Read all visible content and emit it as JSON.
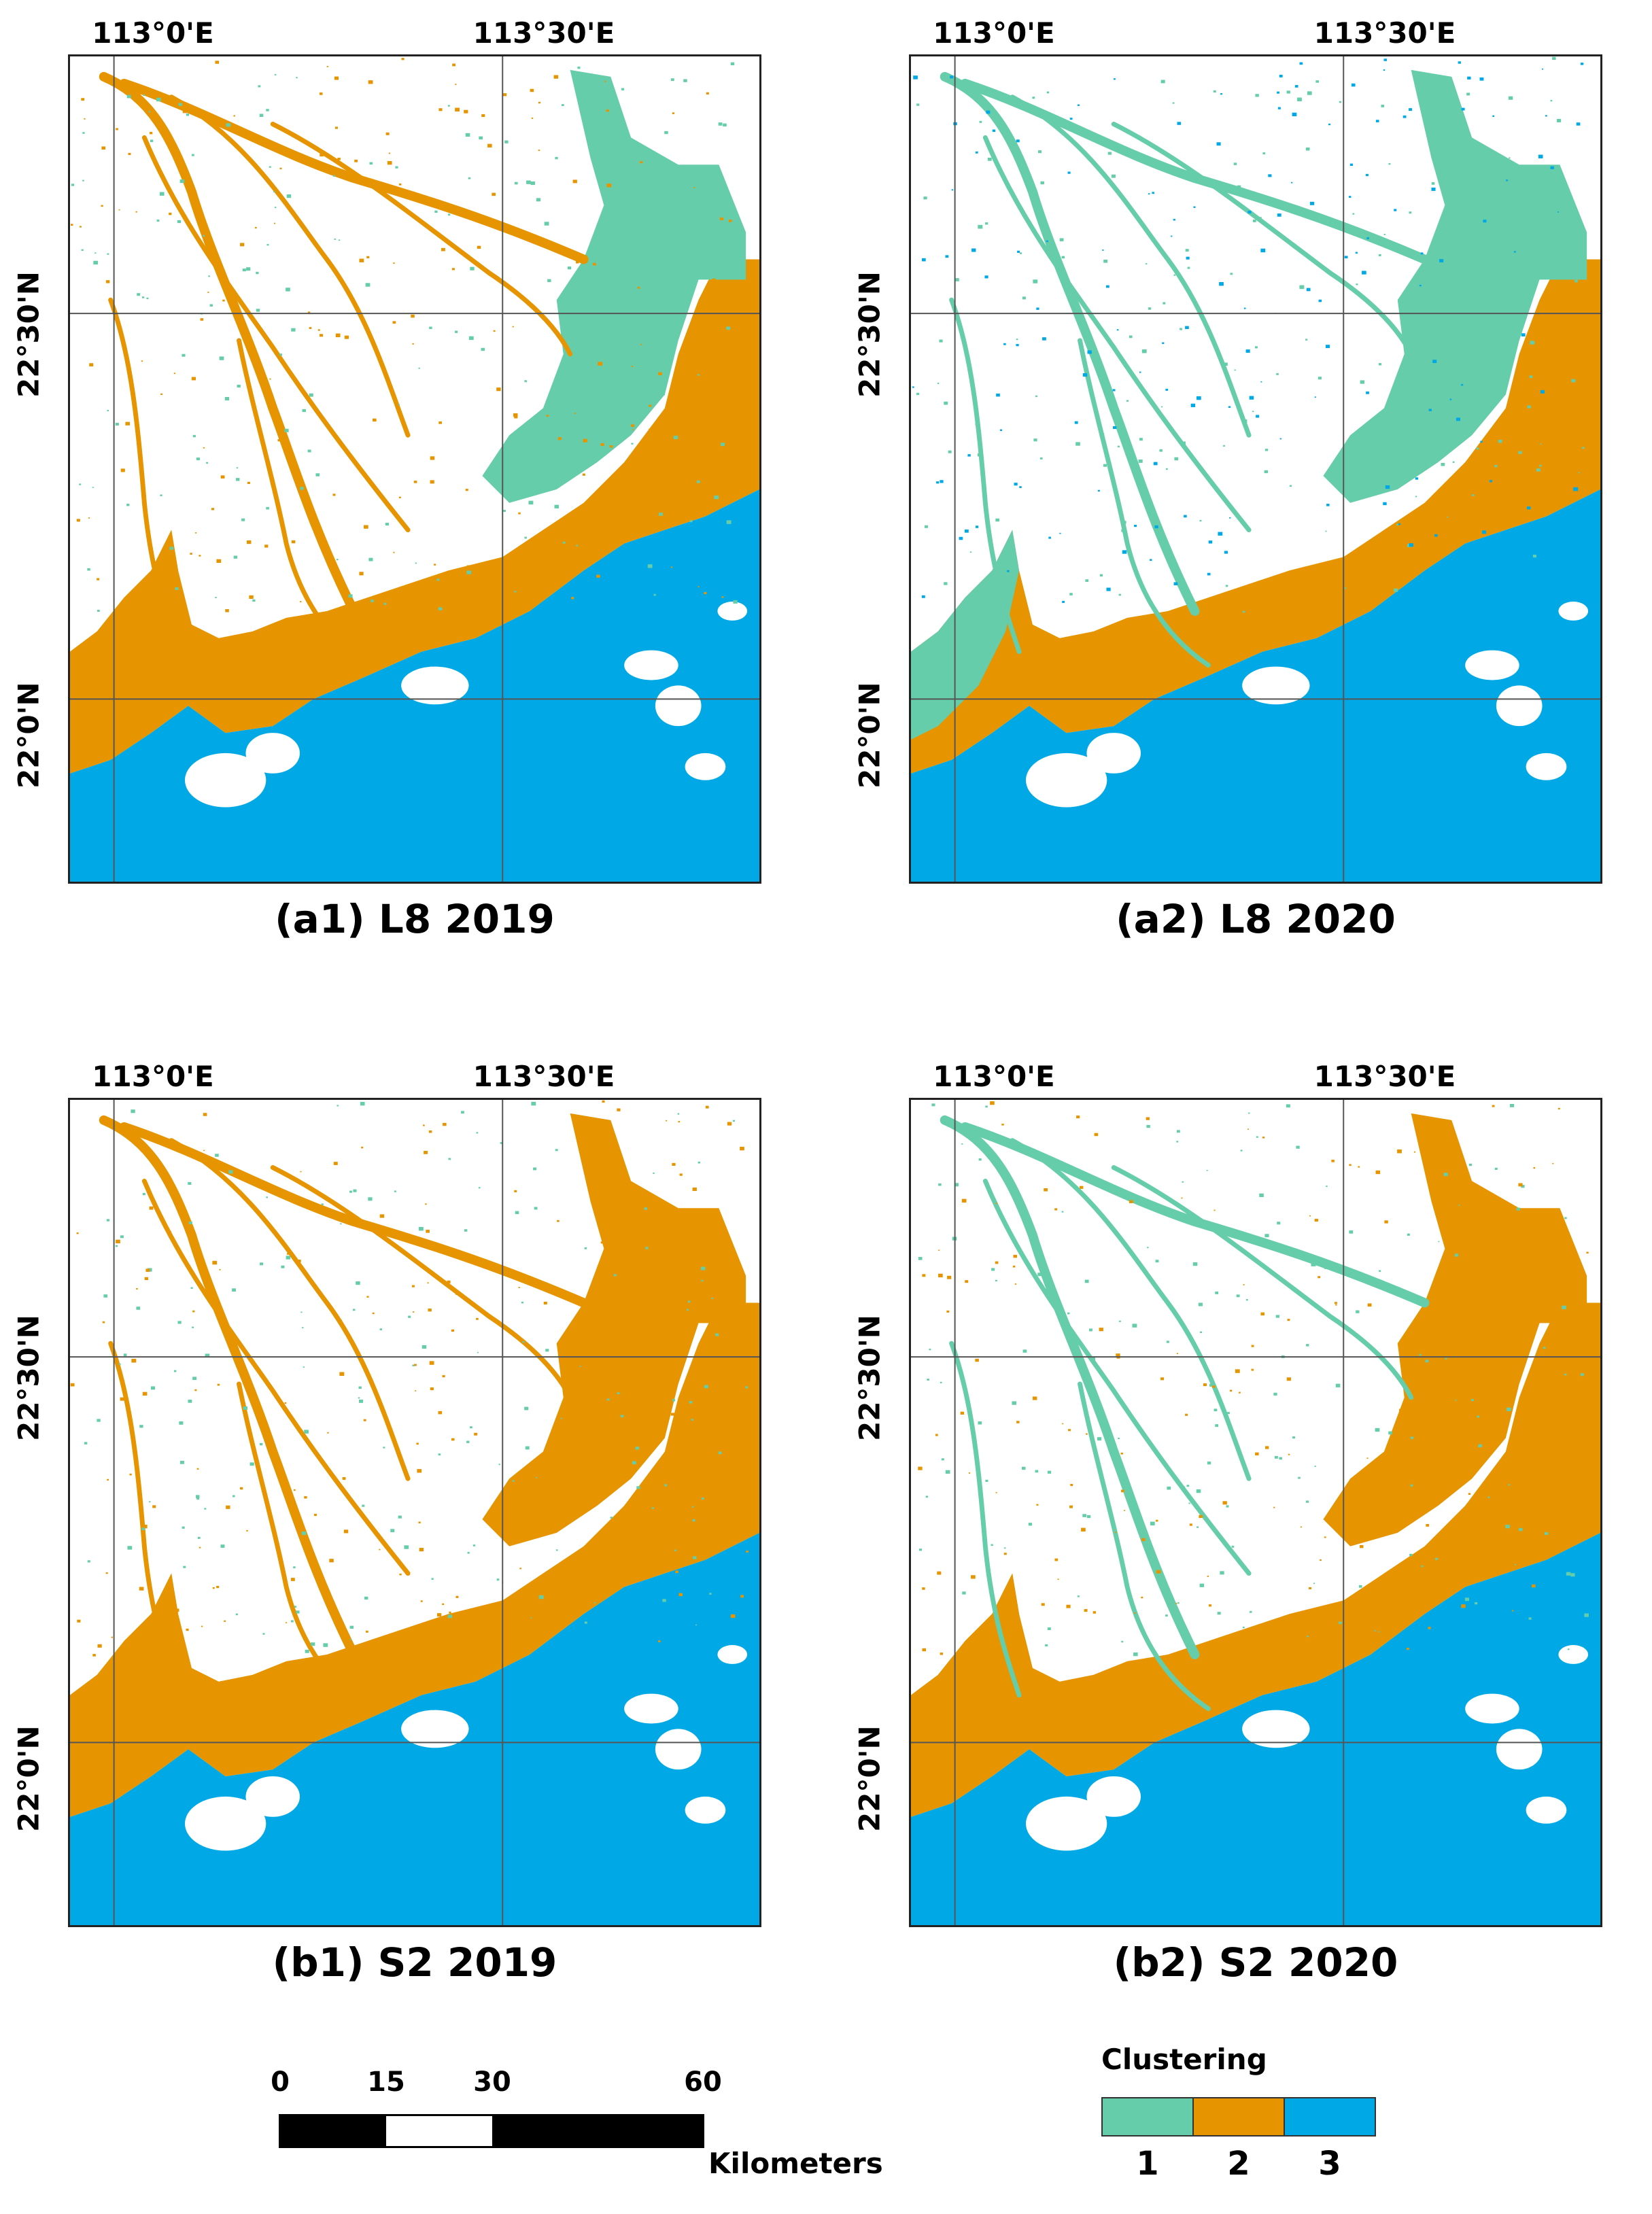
{
  "figure": {
    "panels": [
      {
        "id": "a1",
        "caption": "(a1) L8 2019",
        "variant": 0
      },
      {
        "id": "a2",
        "caption": "(a2) L8 2020",
        "variant": 1
      },
      {
        "id": "b1",
        "caption": "(b1) S2 2019",
        "variant": 2
      },
      {
        "id": "b2",
        "caption": "(b2) S2 2020",
        "variant": 3
      }
    ],
    "lon_labels": [
      "113°0'E",
      "113°30'E"
    ],
    "lat_labels": [
      "22°30'N",
      "22°0'N"
    ]
  },
  "scale_bar": {
    "ticks": [
      "0",
      "15",
      "30",
      "60"
    ],
    "unit": "Kilometers"
  },
  "legend": {
    "title": "Clustering",
    "classes": [
      {
        "label": "1",
        "color": "#66cdaa"
      },
      {
        "label": "2",
        "color": "#e69500"
      },
      {
        "label": "3",
        "color": "#00a9e6"
      }
    ]
  }
}
